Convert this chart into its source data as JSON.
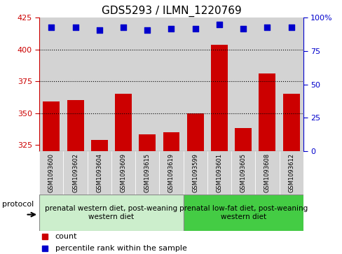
{
  "title": "GDS5293 / ILMN_1220769",
  "samples": [
    "GSM1093600",
    "GSM1093602",
    "GSM1093604",
    "GSM1093609",
    "GSM1093615",
    "GSM1093619",
    "GSM1093599",
    "GSM1093601",
    "GSM1093605",
    "GSM1093608",
    "GSM1093612"
  ],
  "counts": [
    359,
    360,
    329,
    365,
    333,
    335,
    350,
    404,
    338,
    381,
    365
  ],
  "percentiles": [
    93,
    93,
    91,
    93,
    91,
    92,
    92,
    95,
    92,
    93,
    93
  ],
  "ylim_left": [
    320,
    425
  ],
  "ylim_right": [
    0,
    100
  ],
  "yticks_left": [
    325,
    350,
    375,
    400,
    425
  ],
  "yticks_right": [
    0,
    25,
    50,
    75,
    100
  ],
  "group1_label": "prenatal western diet, post-weaning\nwestern diet",
  "group2_label": "prenatal low-fat diet, post-weaning\nwestern diet",
  "group1_count": 6,
  "group2_count": 5,
  "bar_color": "#cc0000",
  "dot_color": "#0000cc",
  "left_axis_color": "#cc0000",
  "right_axis_color": "#0000cc",
  "group1_bg": "#cceecc",
  "group2_bg": "#44cc44",
  "sample_bg": "#d3d3d3",
  "legend_count_label": "count",
  "legend_pct_label": "percentile rank within the sample",
  "protocol_label": "protocol",
  "bar_width": 0.7,
  "dot_size": 30,
  "title_fontsize": 11,
  "axis_fontsize": 8,
  "sample_fontsize": 6,
  "group_fontsize": 7.5,
  "legend_fontsize": 8
}
